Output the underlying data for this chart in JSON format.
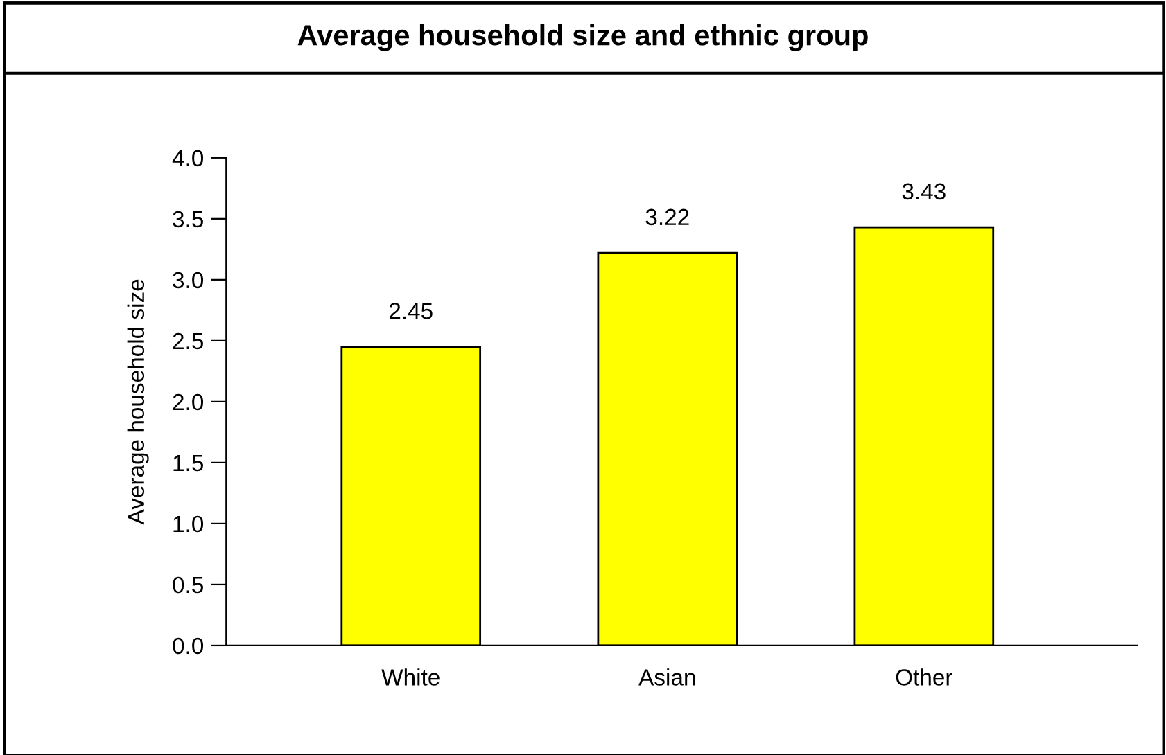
{
  "chart_data": {
    "type": "bar",
    "title": "Average household size and ethnic group",
    "ylabel": "Average household size",
    "categories": [
      "White",
      "Asian",
      "Other"
    ],
    "values": [
      2.45,
      3.22,
      3.43
    ],
    "color": "#ffff00",
    "ylim": [
      0,
      4
    ],
    "yticks": [
      {
        "value": 0,
        "label": "0.0"
      },
      {
        "value": 0.5,
        "label": "0.5"
      },
      {
        "value": 1,
        "label": "1.0"
      },
      {
        "value": 1.5,
        "label": "1.5"
      },
      {
        "value": 2,
        "label": "2.0"
      },
      {
        "value": 2.5,
        "label": "2.5"
      },
      {
        "value": 3,
        "label": "3.0"
      },
      {
        "value": 3.5,
        "label": "3.5"
      },
      {
        "value": 4,
        "label": "4.0"
      }
    ],
    "data_labels": true,
    "grid": false,
    "legend": false
  }
}
